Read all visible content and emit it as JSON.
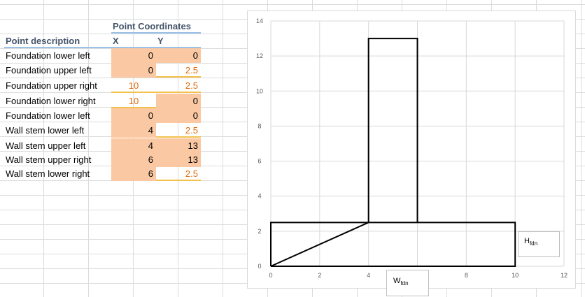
{
  "sheet": {
    "header_group": "Point Coordinates",
    "col_desc": "Point description",
    "col_x": "X",
    "col_y": "Y",
    "rows": [
      {
        "desc": "Foundation lower left",
        "x": "0",
        "y": "0"
      },
      {
        "desc": "Foundation upper left",
        "x": "0",
        "y": "2.5"
      },
      {
        "desc": "Foundation upper right",
        "x": "10",
        "y": "2.5"
      },
      {
        "desc": "Foundation lower right",
        "x": "10",
        "y": "0"
      },
      {
        "desc": "Foundation lower left",
        "x": "0",
        "y": "0"
      },
      {
        "desc": "Wall stem lower left",
        "x": "4",
        "y": "2.5"
      },
      {
        "desc": "Wall stem upper left",
        "x": "4",
        "y": "13"
      },
      {
        "desc": "Wall stem upper right",
        "x": "6",
        "y": "13"
      },
      {
        "desc": "Wall stem lower right",
        "x": "6",
        "y": "2.5"
      }
    ]
  },
  "colors": {
    "input_fill": "#fac8a2",
    "orange_text": "#e26b0a",
    "header_text": "#44546a"
  },
  "chart_data": {
    "type": "scatter",
    "x_ticks": [
      "0",
      "2",
      "4",
      "6",
      "8",
      "10",
      "12"
    ],
    "y_ticks": [
      "0",
      "2",
      "4",
      "6",
      "8",
      "10",
      "12",
      "14"
    ],
    "xlim": [
      0,
      12
    ],
    "ylim": [
      0,
      14
    ],
    "grid": true,
    "series": [
      {
        "points": [
          [
            0,
            0
          ],
          [
            0,
            2.5
          ],
          [
            10,
            2.5
          ],
          [
            10,
            0
          ],
          [
            0,
            0
          ],
          [
            4,
            2.5
          ],
          [
            4,
            13
          ],
          [
            6,
            13
          ],
          [
            6,
            2.5
          ]
        ]
      }
    ],
    "annotations": {
      "h_main": "H",
      "h_sub": "fdn",
      "w_main": "W",
      "w_sub": "fdn"
    }
  }
}
